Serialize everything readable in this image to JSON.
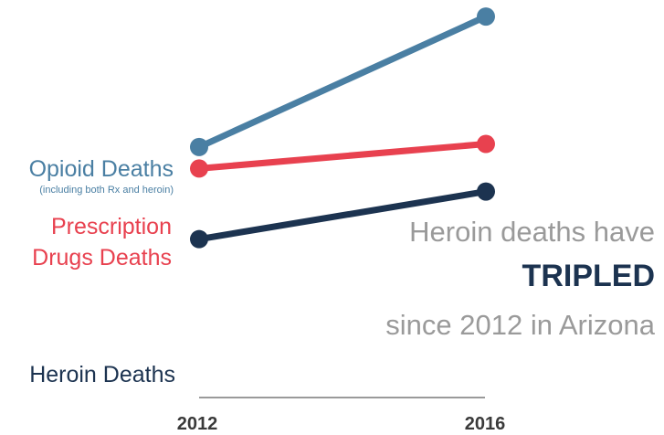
{
  "chart_data": {
    "type": "line",
    "x": [
      "2012",
      "2016"
    ],
    "series": [
      {
        "name": "Opioid Deaths",
        "note": "(including both Rx and heroin)",
        "color": "#4a7fa3",
        "start_index": 3.9,
        "end_index": 12.4
      },
      {
        "name": "Prescription Drugs Deaths",
        "name_lines": [
          "Prescription",
          "Drugs Deaths"
        ],
        "color": "#e8414f",
        "start_index": 2.5,
        "end_index": 4.1
      },
      {
        "name": "Heroin Deaths",
        "color": "#1c3350",
        "start_index": -2.1,
        "end_index": 1.0
      }
    ],
    "value_note": "values are relative slope-chart levels; no numeric axis is printed",
    "x_tick_labels": [
      "2012",
      "2016"
    ]
  },
  "annotation": {
    "line1": "Heroin deaths have",
    "line2": "TRIPLED",
    "line3": "since 2012 in Arizona",
    "line1_color": "#9a9a9a",
    "line2_color": "#1c3350",
    "line3_color": "#9a9a9a"
  },
  "axis_color": "#9a9a9a"
}
